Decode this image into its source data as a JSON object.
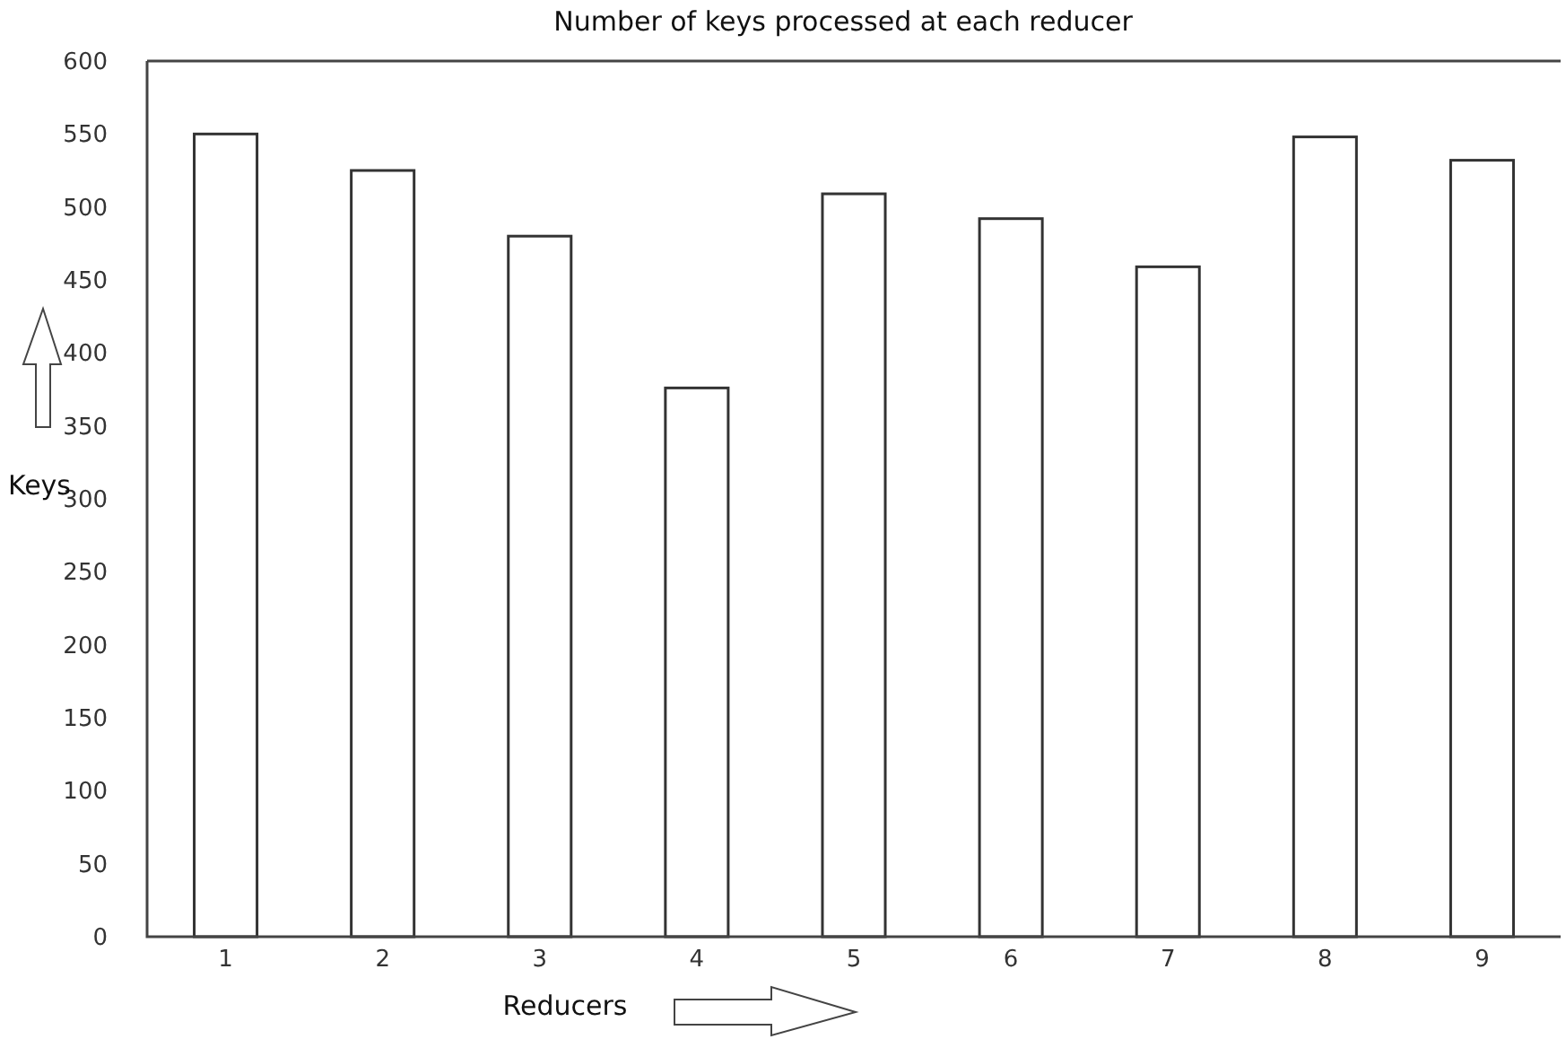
{
  "chart_data": {
    "type": "bar",
    "title": "Number of keys processed at each reducer",
    "xlabel": "Reducers",
    "ylabel": "Keys",
    "categories": [
      "1",
      "2",
      "3",
      "4",
      "5",
      "6",
      "7",
      "8",
      "9"
    ],
    "values": [
      550,
      525,
      480,
      376,
      509,
      492,
      459,
      548,
      532
    ],
    "color": "#ffffff",
    "ylim": [
      0,
      600
    ],
    "yticks": [
      0,
      50,
      100,
      150,
      200,
      250,
      300,
      350,
      400,
      450,
      500,
      550,
      600
    ],
    "grid": false
  }
}
